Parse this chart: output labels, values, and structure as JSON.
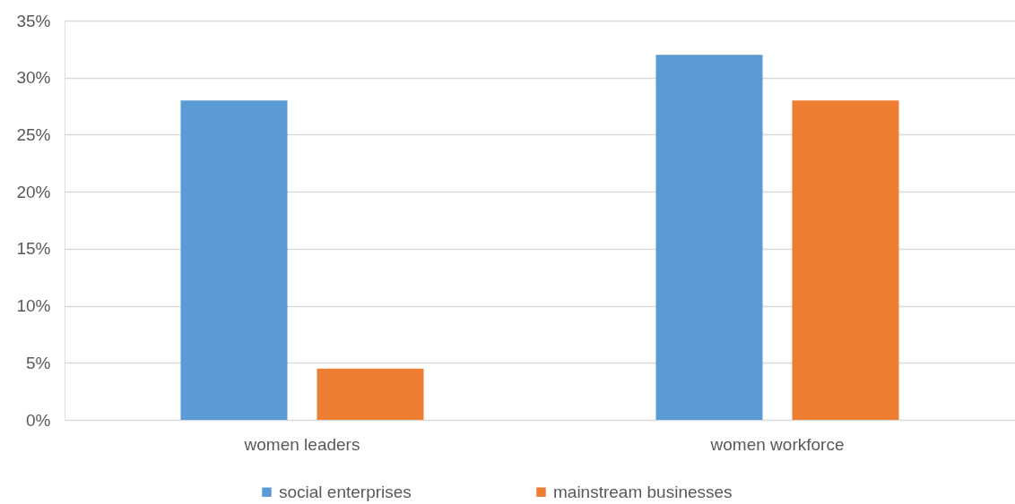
{
  "chart_data": {
    "type": "bar",
    "categories": [
      "women leaders",
      "women workforce"
    ],
    "series": [
      {
        "name": "social enterprises",
        "color": "#5b9bd5",
        "values": [
          28,
          32
        ]
      },
      {
        "name": "mainstream businesses",
        "color": "#ed7d31",
        "values": [
          4.5,
          28
        ]
      }
    ],
    "ylim": [
      0,
      35
    ],
    "yticks": [
      {
        "value": 0,
        "label": "0%"
      },
      {
        "value": 5,
        "label": "5%"
      },
      {
        "value": 10,
        "label": "10%"
      },
      {
        "value": 15,
        "label": "15%"
      },
      {
        "value": 20,
        "label": "20%"
      },
      {
        "value": 25,
        "label": "25%"
      },
      {
        "value": 30,
        "label": "30%"
      },
      {
        "value": 35,
        "label": "35%"
      }
    ],
    "grid": "y",
    "legend": "bottom"
  }
}
